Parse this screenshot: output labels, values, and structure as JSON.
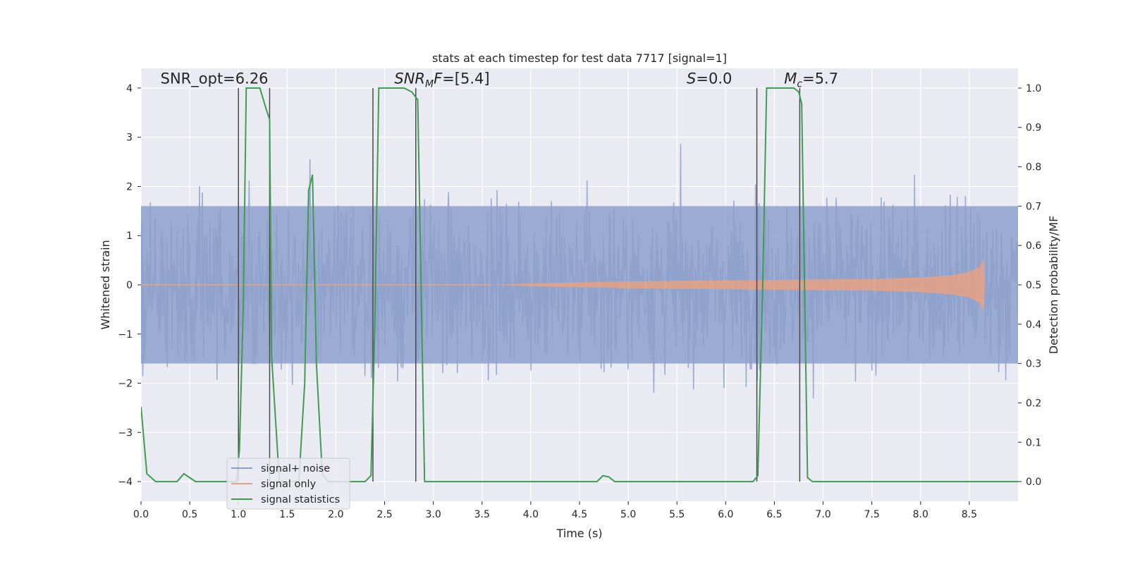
{
  "chart_data": {
    "type": "line",
    "title": "stats at each timestep for test data 7717 [signal=1]",
    "xlabel": "Time (s)",
    "ylabel_left": "Whitened strain",
    "ylabel_right": "Detection probability/MF",
    "xlim": [
      0.0,
      9.0
    ],
    "ylim_left": [
      -4.4,
      4.4
    ],
    "ylim_right": [
      -0.05,
      1.05
    ],
    "x_ticks": [
      "0.0",
      "0.5",
      "1.0",
      "1.5",
      "2.0",
      "2.5",
      "3.0",
      "3.5",
      "4.0",
      "4.5",
      "5.0",
      "5.5",
      "6.0",
      "6.5",
      "7.0",
      "7.5",
      "8.0",
      "8.5"
    ],
    "y_left_ticks": [
      "−4",
      "−3",
      "−2",
      "−1",
      "0",
      "1",
      "2",
      "3",
      "4"
    ],
    "y_right_ticks": [
      "0.0",
      "0.1",
      "0.2",
      "0.3",
      "0.4",
      "0.5",
      "0.6",
      "0.7",
      "0.8",
      "0.9",
      "1.0"
    ],
    "grid": true,
    "background": "#eaeaf2",
    "annotations": [
      {
        "id": "snr-opt",
        "text": "SNR_opt=6.26",
        "x": 0.2,
        "y": 4.12
      },
      {
        "id": "snr-mf",
        "text": "SNR_MF=[5.4]",
        "x": 2.6,
        "y": 4.12
      },
      {
        "id": "s",
        "text": "S=0.0",
        "x": 5.6,
        "y": 4.12
      },
      {
        "id": "mc",
        "text": "M_c=5.7",
        "x": 6.6,
        "y": 4.12
      }
    ],
    "vertical_lines": [
      1.0,
      1.32,
      2.38,
      2.82,
      6.32,
      6.76
    ],
    "legend": {
      "placement": "lower-left",
      "entries": [
        {
          "label": "signal+ noise",
          "color": "#8da0cb"
        },
        {
          "label": "signal only",
          "color": "#e8a182"
        },
        {
          "label": "signal statistics",
          "color": "#3f9c52"
        }
      ]
    },
    "series": [
      {
        "name": "signal+ noise",
        "axis": "left",
        "color": "#8da0cb",
        "description_range": [
          -4.0,
          4.0
        ],
        "core_band": [
          -1.6,
          1.6
        ]
      },
      {
        "name": "signal only",
        "axis": "left",
        "color": "#e8a182",
        "envelope": {
          "x": [
            3.6,
            4.0,
            5.0,
            6.0,
            7.0,
            7.5,
            8.0,
            8.3,
            8.5,
            8.6,
            8.65,
            8.66
          ],
          "amplitude": [
            0.0,
            0.03,
            0.07,
            0.09,
            0.11,
            0.12,
            0.15,
            0.19,
            0.26,
            0.36,
            0.55,
            0.0
          ]
        }
      },
      {
        "name": "signal statistics",
        "axis": "right",
        "color": "#3f9c52",
        "x": [
          0.0,
          0.06,
          0.15,
          0.37,
          0.44,
          0.5,
          0.56,
          0.98,
          1.01,
          1.05,
          1.08,
          1.22,
          1.28,
          1.32,
          1.34,
          1.42,
          1.62,
          1.68,
          1.72,
          1.76,
          1.8,
          1.86,
          1.92,
          2.3,
          2.36,
          2.4,
          2.44,
          2.7,
          2.78,
          2.84,
          2.91,
          2.96,
          4.68,
          4.74,
          4.8,
          4.86,
          6.28,
          6.33,
          6.38,
          6.42,
          6.7,
          6.75,
          6.78,
          6.84,
          6.89,
          9.0
        ],
        "y": [
          0.19,
          0.02,
          0.0,
          0.0,
          0.02,
          0.01,
          0.0,
          0.0,
          0.08,
          0.45,
          1.0,
          1.0,
          0.95,
          0.92,
          0.32,
          0.0,
          0.0,
          0.25,
          0.74,
          0.78,
          0.3,
          0.02,
          0.0,
          0.0,
          0.015,
          0.4,
          1.0,
          1.0,
          0.99,
          0.97,
          0.0,
          0.0,
          0.0,
          0.015,
          0.012,
          0.0,
          0.0,
          0.015,
          0.5,
          1.0,
          1.0,
          0.99,
          0.96,
          0.01,
          0.0,
          0.0
        ]
      }
    ]
  }
}
